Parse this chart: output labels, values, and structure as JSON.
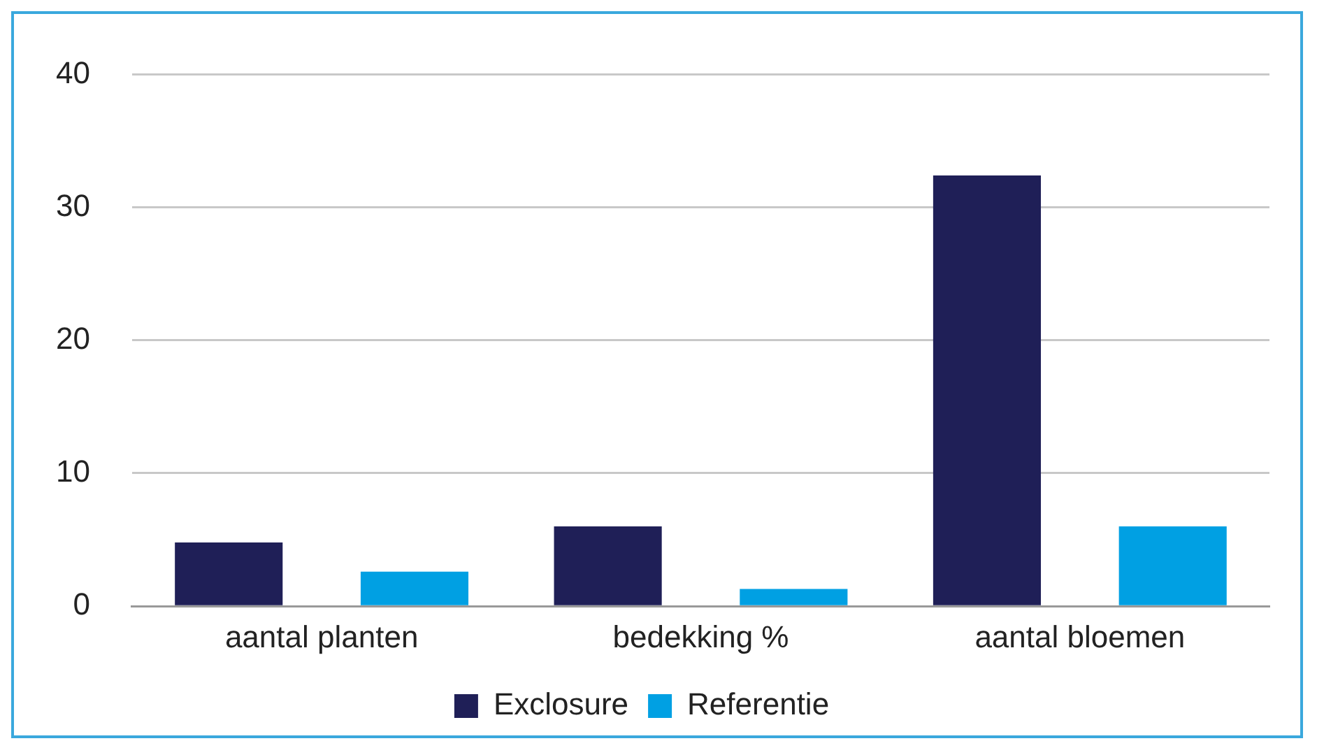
{
  "chart_data": {
    "type": "bar",
    "categories": [
      "aantal planten",
      "bedekking %",
      "aantal bloemen"
    ],
    "series": [
      {
        "name": "Exclosure",
        "color": "#1f1f57",
        "values": [
          4.8,
          6,
          32.4
        ]
      },
      {
        "name": "Referentie",
        "color": "#00a0e3",
        "values": [
          2.6,
          1.3,
          6
        ]
      }
    ],
    "ylim": [
      0,
      40
    ],
    "yticks": [
      0,
      10,
      20,
      30,
      40
    ],
    "grid": "y",
    "legend": "bottom"
  }
}
